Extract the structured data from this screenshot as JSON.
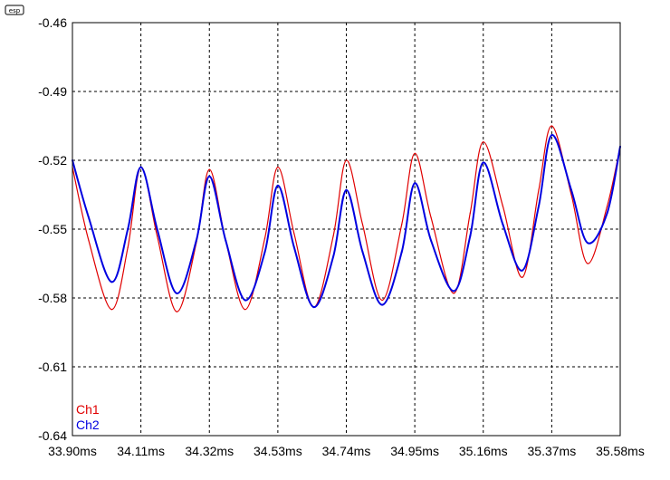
{
  "logo": "esp",
  "chart_data": {
    "type": "line",
    "x_unit": "ms",
    "xlim": [
      33.9,
      35.58
    ],
    "ylim": [
      -0.64,
      -0.46
    ],
    "x_ticks": [
      "33.90ms",
      "34.11ms",
      "34.32ms",
      "34.53ms",
      "34.74ms",
      "34.95ms",
      "35.16ms",
      "35.37ms",
      "35.58ms"
    ],
    "y_ticks": [
      "-0.46",
      "-0.49",
      "-0.52",
      "-0.55",
      "-0.58",
      "-0.61",
      "-0.64"
    ],
    "grid": true,
    "legend_position": "bottom-left",
    "series": [
      {
        "name": "Ch1",
        "color": "#e00000",
        "x": [
          33.9,
          33.95,
          34.02,
          34.07,
          34.11,
          34.16,
          34.22,
          34.28,
          34.32,
          34.37,
          34.43,
          34.49,
          34.53,
          34.58,
          34.64,
          34.7,
          34.74,
          34.79,
          34.85,
          34.91,
          34.95,
          35.0,
          35.07,
          35.12,
          35.16,
          35.22,
          35.28,
          35.33,
          35.37,
          35.43,
          35.48,
          35.54,
          35.58
        ],
        "y": [
          -0.523,
          -0.555,
          -0.585,
          -0.558,
          -0.523,
          -0.553,
          -0.586,
          -0.556,
          -0.524,
          -0.555,
          -0.585,
          -0.554,
          -0.523,
          -0.552,
          -0.584,
          -0.553,
          -0.52,
          -0.548,
          -0.581,
          -0.548,
          -0.517,
          -0.545,
          -0.578,
          -0.543,
          -0.512,
          -0.54,
          -0.571,
          -0.533,
          -0.505,
          -0.535,
          -0.565,
          -0.54,
          -0.514
        ]
      },
      {
        "name": "Ch2",
        "color": "#0000e0",
        "x": [
          33.9,
          33.95,
          34.02,
          34.07,
          34.11,
          34.16,
          34.22,
          34.28,
          34.32,
          34.37,
          34.43,
          34.49,
          34.53,
          34.58,
          34.64,
          34.7,
          34.74,
          34.79,
          34.85,
          34.91,
          34.95,
          35.0,
          35.07,
          35.12,
          35.16,
          35.22,
          35.28,
          35.33,
          35.37,
          35.43,
          35.48,
          35.54,
          35.58
        ],
        "y": [
          -0.52,
          -0.545,
          -0.573,
          -0.55,
          -0.523,
          -0.55,
          -0.578,
          -0.555,
          -0.527,
          -0.555,
          -0.581,
          -0.56,
          -0.531,
          -0.558,
          -0.584,
          -0.562,
          -0.533,
          -0.56,
          -0.583,
          -0.56,
          -0.53,
          -0.555,
          -0.577,
          -0.553,
          -0.521,
          -0.548,
          -0.568,
          -0.54,
          -0.509,
          -0.533,
          -0.556,
          -0.543,
          -0.514
        ]
      }
    ]
  }
}
